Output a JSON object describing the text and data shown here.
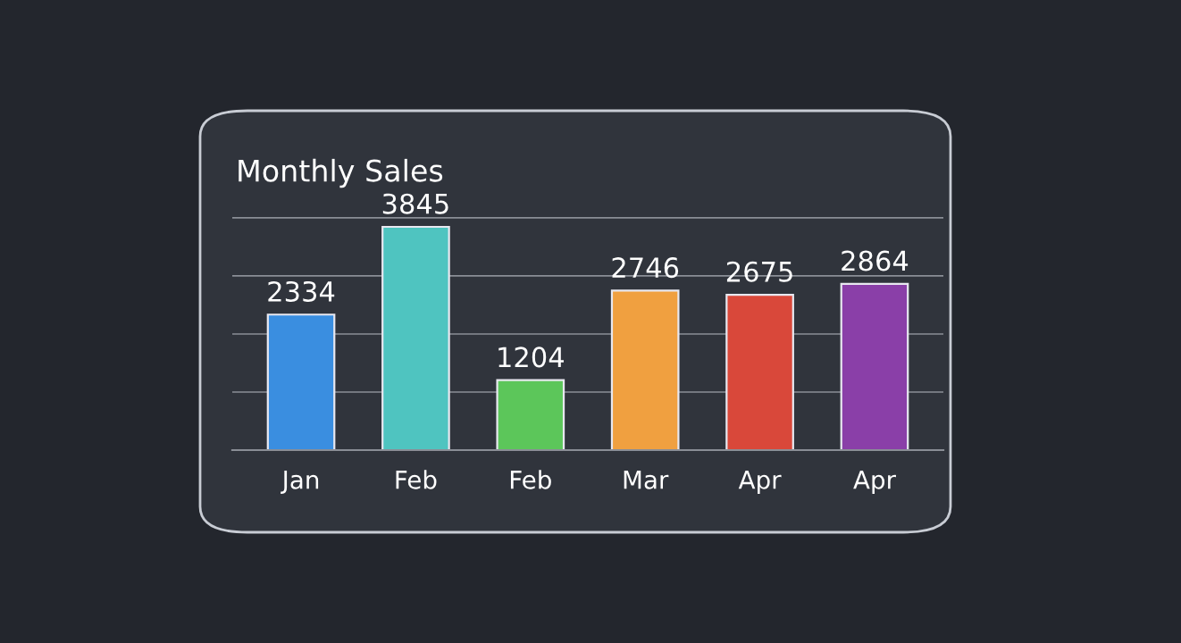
{
  "chart_data": {
    "type": "bar",
    "title": "Monthly Sales",
    "categories": [
      "Jan",
      "Feb",
      "Feb",
      "Mar",
      "Apr",
      "Apr"
    ],
    "values": [
      2334,
      3845,
      1204,
      2746,
      2675,
      2864
    ],
    "data_labels": true,
    "colors": [
      "#3a8ee0",
      "#4fc4c0",
      "#5cc65a",
      "#f0a040",
      "#d9483a",
      "#8a3fa8"
    ],
    "tick_labels": "x",
    "grid": "y"
  }
}
